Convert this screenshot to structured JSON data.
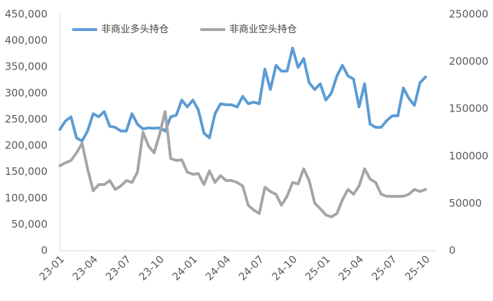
{
  "chart_data": {
    "type": "line",
    "categories": [
      "23-01",
      null,
      null,
      null,
      null,
      null,
      "23-04",
      null,
      null,
      null,
      null,
      null,
      "23-07",
      null,
      null,
      null,
      null,
      null,
      "23-10",
      null,
      null,
      null,
      null,
      null,
      "24-01",
      null,
      null,
      null,
      null,
      null,
      "24-04",
      null,
      null,
      null,
      null,
      null,
      "24-07",
      null,
      null,
      null,
      null,
      null,
      "24-10",
      null,
      null,
      null,
      null,
      null,
      "25-01",
      null,
      null,
      null,
      null,
      null,
      "25-04",
      null,
      null,
      null,
      null,
      null,
      "25-07",
      null,
      null,
      null,
      null,
      null,
      "25-10"
    ],
    "series": [
      {
        "name": "非商业多头持仓",
        "color": "#5b9bd5",
        "values": [
          231000,
          247000,
          255000,
          215000,
          209000,
          228000,
          261000,
          255000,
          265000,
          237000,
          235000,
          228000,
          228000,
          261000,
          241000,
          232000,
          234000,
          233000,
          234000,
          228000,
          255000,
          258000,
          287000,
          274000,
          287000,
          268000,
          224000,
          215000,
          261000,
          280000,
          278000,
          278000,
          274000,
          294000,
          280000,
          283000,
          280000,
          346000,
          307000,
          353000,
          342000,
          342000,
          386000,
          349000,
          366000,
          320000,
          307000,
          318000,
          287000,
          300000,
          333000,
          353000,
          333000,
          327000,
          274000,
          318000,
          241000,
          235000,
          235000,
          248000,
          257000,
          257000,
          310000,
          290000,
          277000,
          320000,
          331000
        ]
      },
      {
        "name": "非商业空头持仓",
        "color": "#a5a5a5",
        "axis": "y2",
        "values": [
          90000,
          93000,
          95500,
          103500,
          113700,
          86700,
          63400,
          70000,
          70000,
          74300,
          64900,
          68500,
          74300,
          72200,
          83100,
          125400,
          110800,
          103500,
          123200,
          147200,
          97700,
          95500,
          96200,
          83100,
          80900,
          81600,
          70000,
          84500,
          72200,
          79400,
          74300,
          74300,
          72200,
          68500,
          48100,
          43000,
          39400,
          67100,
          62700,
          59800,
          48100,
          57600,
          72200,
          70700,
          86700,
          74300,
          50300,
          44500,
          37900,
          35700,
          39400,
          53900,
          64900,
          59800,
          68500,
          86700,
          75800,
          72200,
          59800,
          57600,
          57600,
          57600,
          57600,
          59800,
          64900,
          62700,
          64900
        ]
      }
    ],
    "ylim": [
      0,
      450000
    ],
    "yticks": [
      0,
      {
        "value": 50000,
        "label": "50,000"
      },
      {
        "value": 100000,
        "label": "100,000"
      },
      {
        "value": 150000,
        "label": "150,000"
      },
      {
        "value": 200000,
        "label": "200,000"
      },
      {
        "value": 250000,
        "label": "250,000"
      },
      {
        "value": 300000,
        "label": "300,000"
      },
      {
        "value": 350000,
        "label": "350,000"
      },
      {
        "value": 400000,
        "label": "400,000"
      },
      {
        "value": 450000,
        "label": "450,000"
      }
    ],
    "y2lim": [
      0,
      250000
    ],
    "y2ticks": [
      0,
      50000,
      100000,
      150000,
      200000,
      250000
    ],
    "legend": "top-left"
  }
}
